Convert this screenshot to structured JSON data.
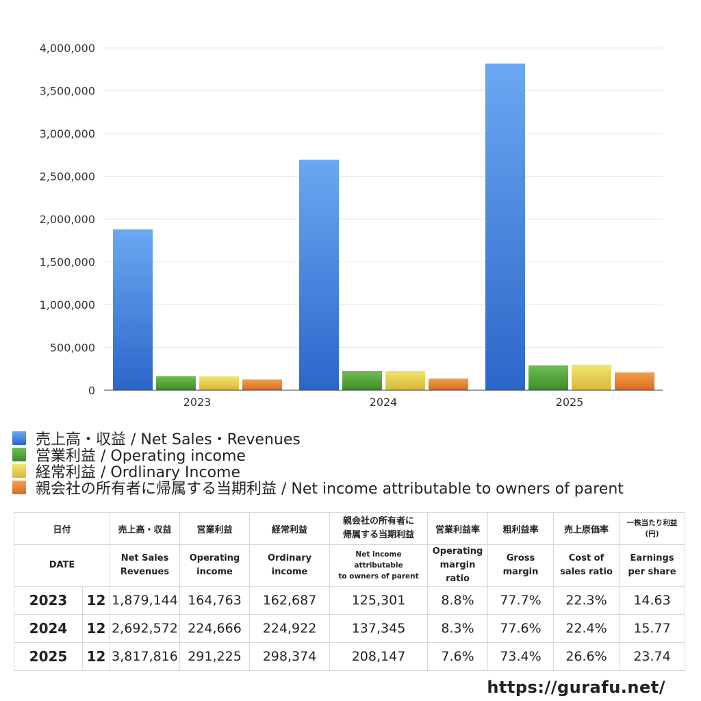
{
  "chart_data": {
    "type": "bar",
    "categories": [
      "2023",
      "2024",
      "2025"
    ],
    "y_ticks": [
      "0",
      "500,000",
      "1,000,000",
      "1,500,000",
      "2,000,000",
      "2,500,000",
      "3,000,000",
      "3,500,000",
      "4,000,000"
    ],
    "ylim": [
      0,
      4000000
    ],
    "grid": true,
    "legend_position": "bottom",
    "series": [
      {
        "name": "売上高・収益 / Net Sales・Revenues",
        "values": [
          1879144,
          2692572,
          3817816
        ],
        "color_top": "#6aa8f2",
        "color_bottom": "#2c66c9"
      },
      {
        "name": "営業利益 / Operating income",
        "values": [
          164763,
          224666,
          291225
        ],
        "color_top": "#6fbf52",
        "color_bottom": "#3c8c2c"
      },
      {
        "name": "経常利益 / Ordlinary Income",
        "values": [
          162687,
          224922,
          298374
        ],
        "color_top": "#f2e56a",
        "color_bottom": "#d8b83a"
      },
      {
        "name": "親会社の所有者に帰属する当期利益 / Net income attributable to owners of parent",
        "values": [
          125301,
          137345,
          208147
        ],
        "color_top": "#f0a04a",
        "color_bottom": "#d96a24"
      }
    ]
  },
  "table": {
    "header_jp": {
      "date": "日付",
      "sales": "売上高・収益",
      "op": "営業利益",
      "ord": "経常利益",
      "net_1": "親会社の所有者に",
      "net_2": "帰属する当期利益",
      "opm": "営業利益率",
      "gm": "粗利益率",
      "cos": "売上原価率",
      "eps_1": "一株当たり利益",
      "eps_2": "(円)"
    },
    "header_en": {
      "date": "DATE",
      "sales_1": "Net Sales",
      "sales_2": "Revenues",
      "op_1": "Operating",
      "op_2": "income",
      "ord_1": "Ordinary",
      "ord_2": "income",
      "net_1": "Net income attributable",
      "net_2": "to owners of parent",
      "opm_1": "Operating",
      "opm_2": "margin",
      "opm_3": "ratio",
      "gm_1": "Gross",
      "gm_2": "margin",
      "cos_1": "Cost of",
      "cos_2": "sales ratio",
      "eps_1": "Earnings",
      "eps_2": "per share"
    },
    "rows": [
      {
        "year": "2023",
        "month": "12",
        "sales": "1,879,144",
        "op": "164,763",
        "ord": "162,687",
        "net": "125,301",
        "opm": "8.8%",
        "gm": "77.7%",
        "cos": "22.3%",
        "eps": "14.63"
      },
      {
        "year": "2024",
        "month": "12",
        "sales": "2,692,572",
        "op": "224,666",
        "ord": "224,922",
        "net": "137,345",
        "opm": "8.3%",
        "gm": "77.6%",
        "cos": "22.4%",
        "eps": "15.77"
      },
      {
        "year": "2025",
        "month": "12",
        "sales": "3,817,816",
        "op": "291,225",
        "ord": "298,374",
        "net": "208,147",
        "opm": "7.6%",
        "gm": "73.4%",
        "cos": "26.6%",
        "eps": "23.74"
      }
    ]
  },
  "footer": {
    "url": "https://gurafu.net/"
  }
}
